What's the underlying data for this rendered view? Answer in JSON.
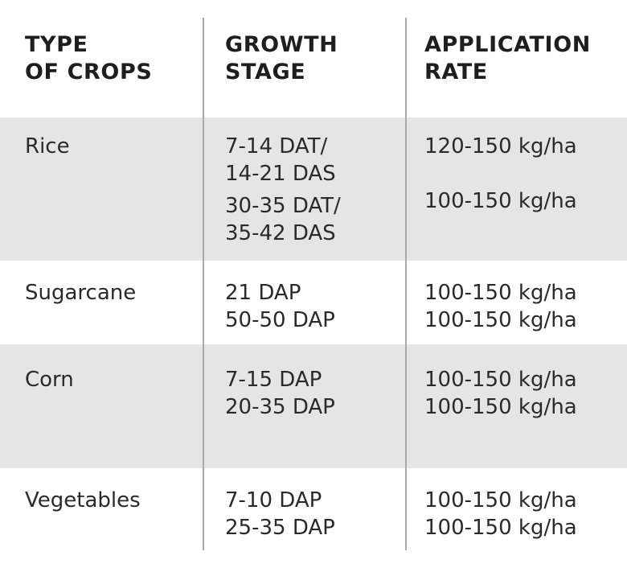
{
  "headers": {
    "crop": [
      "TYPE",
      "OF CROPS"
    ],
    "stage": [
      "GROWTH",
      "STAGE"
    ],
    "rate": [
      "APPLICATION",
      "RATE"
    ]
  },
  "rows": [
    {
      "crop": "Rice",
      "stages": [
        "7-14 DAT/",
        "14-21 DAS",
        "30-35 DAT/",
        "35-42 DAS"
      ],
      "rates": [
        "120-150 kg/ha",
        "100-150 kg/ha"
      ]
    },
    {
      "crop": "Sugarcane",
      "stages": [
        "21 DAP",
        "50-50 DAP"
      ],
      "rates": [
        "100-150 kg/ha",
        "100-150 kg/ha"
      ]
    },
    {
      "crop": "Corn",
      "stages": [
        "7-15 DAP",
        "20-35 DAP"
      ],
      "rates": [
        "100-150 kg/ha",
        "100-150 kg/ha"
      ]
    },
    {
      "crop": "Vegetables",
      "stages": [
        "7-10 DAP",
        "25-35 DAP"
      ],
      "rates": [
        "100-150 kg/ha",
        "100-150 kg/ha"
      ]
    }
  ]
}
